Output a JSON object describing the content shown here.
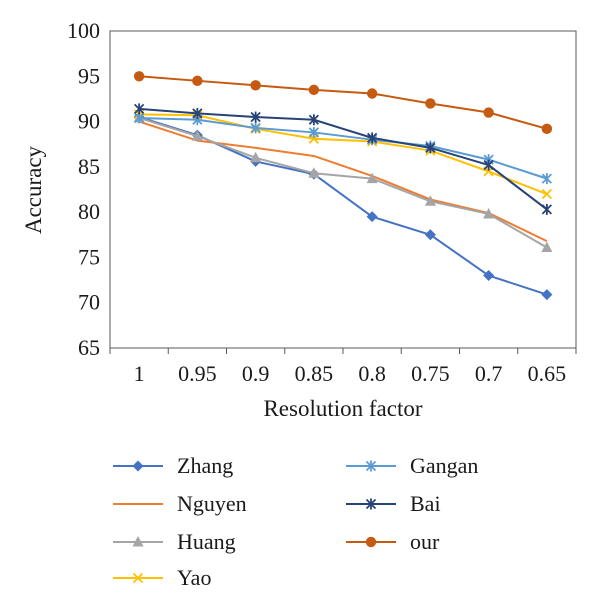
{
  "chart_data": {
    "type": "line",
    "xlabel": "Resolution factor",
    "ylabel": "Accuracy",
    "categories": [
      "1",
      "0.95",
      "0.9",
      "0.85",
      "0.8",
      "0.75",
      "0.7",
      "0.65"
    ],
    "ylim": [
      65,
      100
    ],
    "yticks": [
      65,
      70,
      75,
      80,
      85,
      90,
      95,
      100
    ],
    "grid": false,
    "legend_position": "bottom",
    "series": [
      {
        "name": "Zhang",
        "color": "#4472c4",
        "marker": "diamond",
        "values": [
          90.5,
          88.5,
          85.6,
          84.2,
          79.5,
          77.5,
          73.0,
          70.9
        ]
      },
      {
        "name": "Nguyen",
        "color": "#ed7d31",
        "marker": "none",
        "values": [
          90.0,
          87.9,
          87.1,
          86.2,
          84.0,
          81.4,
          79.9,
          76.8
        ]
      },
      {
        "name": "Huang",
        "color": "#a5a5a5",
        "marker": "triangle",
        "values": [
          90.4,
          88.4,
          86.0,
          84.3,
          83.7,
          81.2,
          79.8,
          76.1
        ]
      },
      {
        "name": "Yao",
        "color": "#ffc000",
        "marker": "x",
        "values": [
          90.8,
          90.7,
          89.2,
          88.1,
          87.8,
          86.8,
          84.5,
          82.0
        ]
      },
      {
        "name": "Gangan",
        "color": "#5b9bd5",
        "marker": "asterisk",
        "values": [
          90.4,
          90.2,
          89.3,
          88.8,
          88.0,
          87.3,
          85.8,
          83.7
        ]
      },
      {
        "name": "Bai",
        "color": "#264478",
        "marker": "asterisk",
        "values": [
          91.4,
          90.9,
          90.5,
          90.2,
          88.2,
          87.1,
          85.2,
          80.3
        ]
      },
      {
        "name": "our",
        "color": "#c55a11",
        "marker": "circle",
        "values": [
          95.0,
          94.5,
          94.0,
          93.5,
          93.1,
          92.0,
          91.0,
          89.2
        ]
      }
    ]
  }
}
